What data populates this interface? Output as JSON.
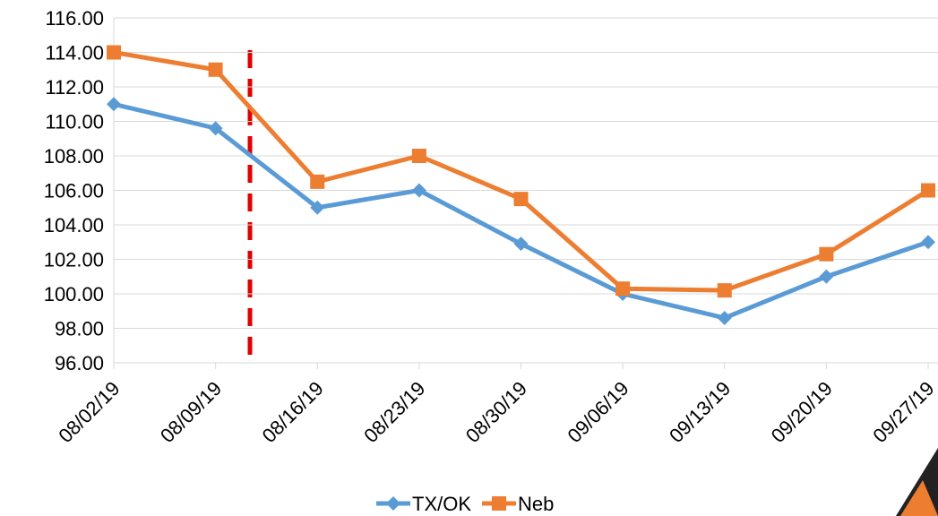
{
  "chart_data": {
    "type": "line",
    "categories": [
      "08/02/19",
      "08/09/19",
      "08/16/19",
      "08/23/19",
      "08/30/19",
      "09/06/19",
      "09/13/19",
      "09/20/19",
      "09/27/19"
    ],
    "series": [
      {
        "name": "TX/OK",
        "color": "#5b9bd5",
        "marker": "diamond",
        "values": [
          111.0,
          109.6,
          105.0,
          106.0,
          102.9,
          100.0,
          98.6,
          101.0,
          103.0
        ]
      },
      {
        "name": "Neb",
        "color": "#ed7d31",
        "marker": "square",
        "values": [
          114.0,
          113.0,
          106.5,
          108.0,
          105.5,
          100.3,
          100.2,
          102.3,
          106.0
        ]
      }
    ],
    "ylim": [
      96,
      116
    ],
    "yticks": [
      {
        "value": 96,
        "label": "96.00"
      },
      {
        "value": 98,
        "label": "98.00"
      },
      {
        "value": 100,
        "label": "100.00"
      },
      {
        "value": 102,
        "label": "102.00"
      },
      {
        "value": 104,
        "label": "104.00"
      },
      {
        "value": 106,
        "label": "106.00"
      },
      {
        "value": 108,
        "label": "108.00"
      },
      {
        "value": 110,
        "label": "110.00"
      },
      {
        "value": 112,
        "label": "112.00"
      },
      {
        "value": 114,
        "label": "114.00"
      },
      {
        "value": 116,
        "label": "116.00"
      }
    ],
    "grid": true,
    "legend": "bottom"
  }
}
